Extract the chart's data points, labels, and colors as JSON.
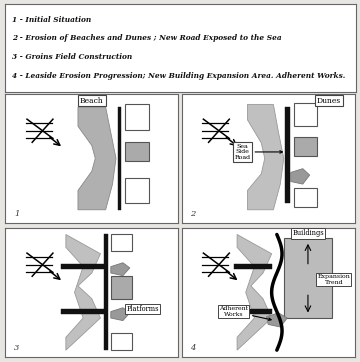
{
  "bg_color": "#e8e6e2",
  "legend_items": [
    "1 - Initial Situation",
    "2 - Erosion of Beaches and Dunes ; New Road Exposed to the Sea",
    "3 - Groins Field Construction",
    "4 - Leaside Erosion Progression; New Building Expansion Area. Adherent Works."
  ]
}
